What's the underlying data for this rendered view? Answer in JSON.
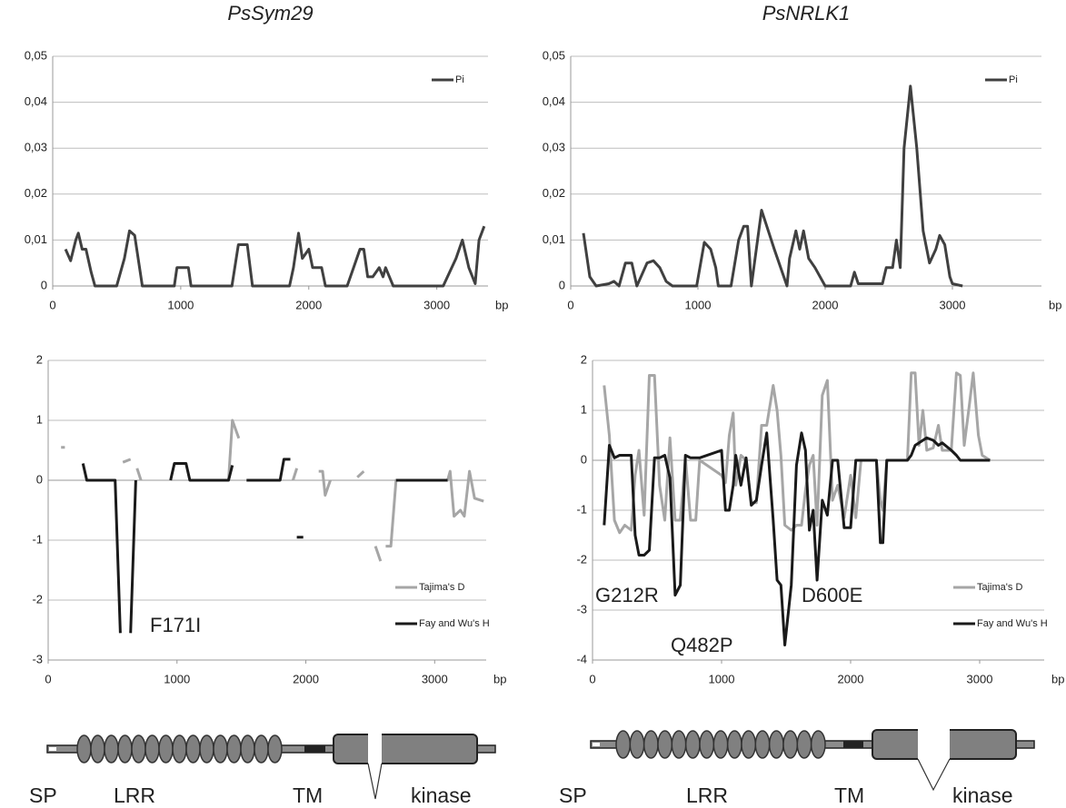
{
  "chart_data": [
    {
      "type": "line",
      "title": "PsSym29",
      "x_label": "bp",
      "legend": "upper right",
      "grid": true,
      "xlim": [
        0,
        3400
      ],
      "xticks": [
        0,
        1000,
        2000,
        3000
      ],
      "ylim": [
        0,
        0.05
      ],
      "yticks": [
        0,
        {
          "value": 0.01,
          "label": "0,01"
        },
        {
          "value": 0.02,
          "label": "0,02"
        },
        {
          "value": 0.03,
          "label": "0,03"
        },
        {
          "value": 0.04,
          "label": "0,04"
        },
        {
          "value": 0.05,
          "label": "0,05"
        }
      ],
      "x": [
        100,
        140,
        180,
        200,
        230,
        260,
        300,
        330,
        500,
        560,
        600,
        640,
        700,
        950,
        970,
        1060,
        1080,
        1400,
        1450,
        1520,
        1560,
        1850,
        1880,
        1920,
        1950,
        2000,
        2030,
        2100,
        2130,
        2300,
        2350,
        2400,
        2430,
        2460,
        2500,
        2550,
        2580,
        2600,
        2630,
        2660,
        3050,
        3150,
        3200,
        3250,
        3300,
        3330,
        3370
      ],
      "series": [
        {
          "name": "Pi",
          "color": "#404040",
          "values": [
            0.008,
            0.0055,
            0.01,
            0.0115,
            0.008,
            0.008,
            0.003,
            0,
            0,
            0.006,
            0.012,
            0.011,
            0,
            0,
            0.004,
            0.004,
            0,
            0,
            0.009,
            0.009,
            0,
            0,
            0.004,
            0.0115,
            0.006,
            0.008,
            0.004,
            0.004,
            0,
            0,
            0.004,
            0.008,
            0.008,
            0.002,
            0.002,
            0.004,
            0.002,
            0.004,
            0.002,
            0,
            0,
            0.006,
            0.01,
            0.004,
            0.0005,
            0.01,
            0.013
          ]
        }
      ]
    },
    {
      "type": "line",
      "title": "PsNRLK1",
      "x_label": "bp",
      "legend": "upper right",
      "grid": true,
      "xlim": [
        0,
        3700
      ],
      "xticks": [
        0,
        1000,
        2000,
        3000
      ],
      "ylim": [
        0,
        0.05
      ],
      "yticks": [
        0,
        {
          "value": 0.01,
          "label": "0,01"
        },
        {
          "value": 0.02,
          "label": "0,02"
        },
        {
          "value": 0.03,
          "label": "0,03"
        },
        {
          "value": 0.04,
          "label": "0,04"
        },
        {
          "value": 0.05,
          "label": "0,05"
        }
      ],
      "x": [
        100,
        150,
        200,
        300,
        340,
        380,
        430,
        480,
        520,
        600,
        650,
        700,
        750,
        800,
        850,
        990,
        1050,
        1100,
        1140,
        1160,
        1260,
        1320,
        1360,
        1390,
        1420,
        1500,
        1600,
        1700,
        1720,
        1770,
        1800,
        1830,
        1870,
        1920,
        2000,
        2200,
        2230,
        2260,
        2450,
        2480,
        2530,
        2560,
        2590,
        2620,
        2670,
        2720,
        2770,
        2820,
        2870,
        2900,
        2940,
        2980,
        3000,
        3080
      ],
      "series": [
        {
          "name": "Pi",
          "color": "#404040",
          "values": [
            0.0115,
            0.002,
            0,
            0.0005,
            0.001,
            0,
            0.005,
            0.005,
            0,
            0.005,
            0.0055,
            0.004,
            0.001,
            0,
            0,
            0,
            0.0095,
            0.008,
            0.004,
            0,
            0,
            0.01,
            0.013,
            0.013,
            0,
            0.0165,
            0.008,
            0,
            0.006,
            0.012,
            0.008,
            0.012,
            0.006,
            0.004,
            0,
            0,
            0.003,
            0.0005,
            0.0005,
            0.004,
            0.004,
            0.01,
            0.004,
            0.03,
            0.0435,
            0.03,
            0.012,
            0.005,
            0.008,
            0.011,
            0.009,
            0.002,
            0.0005,
            0
          ]
        }
      ]
    },
    {
      "type": "line",
      "x_label": "bp",
      "legend": "lower right",
      "grid": true,
      "xlim": [
        0,
        3400
      ],
      "xticks": [
        0,
        1000,
        2000,
        3000
      ],
      "ylim": [
        -3,
        2
      ],
      "yticks": [
        -3,
        -2,
        -1,
        0,
        1,
        2
      ],
      "annotations": [
        "F171I"
      ],
      "x": [
        100,
        130,
        160,
        170,
        200,
        220,
        230,
        260,
        270,
        300,
        520,
        560,
        580,
        640,
        680,
        690,
        720,
        950,
        980,
        1070,
        1100,
        1400,
        1430,
        1480,
        1500,
        1520,
        1540,
        1800,
        1830,
        1880,
        1900,
        1930,
        1980,
        1990,
        2020,
        2100,
        2130,
        2150,
        2190,
        2250,
        2260,
        2280,
        2300,
        2360,
        2370,
        2390,
        2400,
        2450,
        2490,
        2500,
        2520,
        2540,
        2580,
        2600,
        2620,
        2660,
        2700,
        3100,
        3120,
        3150,
        3200,
        3230,
        3270,
        3310,
        3380
      ],
      "series": [
        {
          "name": "Tajima's D",
          "color": "#a6a6a6",
          "values": [
            0.55,
            0.55,
            null,
            1.05,
            null,
            0.7,
            null,
            0.6,
            null,
            0,
            null,
            null,
            0.3,
            0.35,
            null,
            0.2,
            0,
            null,
            null,
            null,
            null,
            0,
            1.0,
            0.7,
            null,
            0,
            null,
            null,
            null,
            null,
            0,
            0.2,
            null,
            0.15,
            null,
            0.15,
            0.15,
            -0.25,
            0,
            null,
            0,
            null,
            0.15,
            null,
            0.15,
            null,
            0.05,
            0.15,
            null,
            0.05,
            null,
            -1.1,
            -1.35,
            null,
            -1.1,
            -1.1,
            0,
            0,
            0.15,
            -0.6,
            -0.5,
            -0.6,
            0.15,
            -0.3,
            -0.35
          ]
        },
        {
          "name": "Fay and Wu's H",
          "color": "#1a1a1a",
          "values": [
            -0.8,
            null,
            -0.75,
            null,
            -0.6,
            null,
            0.28,
            null,
            0.28,
            0,
            0,
            -2.55,
            null,
            -2.55,
            0,
            null,
            null,
            0,
            0.28,
            0.28,
            0,
            0,
            0.25,
            null,
            0.25,
            null,
            0,
            0,
            0.35,
            0.35,
            null,
            -0.95,
            -0.95,
            null,
            0,
            null,
            null,
            null,
            null,
            0,
            null,
            -0.95,
            null,
            -0.95,
            null,
            0,
            null,
            null,
            0,
            null,
            0.2,
            null,
            null,
            0.2,
            null,
            null,
            0,
            0,
            null,
            null,
            null,
            null,
            null,
            null,
            null
          ]
        }
      ]
    },
    {
      "type": "line",
      "x_label": "bp",
      "legend": "lower right",
      "grid": true,
      "xlim": [
        0,
        3500
      ],
      "xticks": [
        0,
        1000,
        2000,
        3000
      ],
      "ylim": [
        -4,
        2
      ],
      "yticks": [
        -4,
        -3,
        -2,
        -1,
        0,
        1,
        2
      ],
      "annotations": [
        "G212R",
        "Q482P",
        "D600E"
      ],
      "x": [
        90,
        130,
        170,
        210,
        250,
        300,
        330,
        360,
        400,
        440,
        480,
        520,
        560,
        600,
        640,
        680,
        720,
        760,
        800,
        830,
        1000,
        1030,
        1060,
        1090,
        1110,
        1150,
        1190,
        1230,
        1270,
        1310,
        1350,
        1400,
        1430,
        1460,
        1490,
        1540,
        1580,
        1620,
        1650,
        1680,
        1710,
        1740,
        1780,
        1820,
        1860,
        1900,
        1950,
        2000,
        2040,
        2080,
        2200,
        2230,
        2250,
        2280,
        2440,
        2470,
        2500,
        2530,
        2560,
        2590,
        2640,
        2680,
        2710,
        2780,
        2820,
        2850,
        2880,
        2920,
        2950,
        2990,
        3020,
        3080
      ],
      "series": [
        {
          "name": "Tajima's D",
          "color": "#a6a6a6",
          "values": [
            1.5,
            0.5,
            -1.2,
            -1.45,
            -1.3,
            -1.4,
            -0.3,
            0.2,
            -1.1,
            1.7,
            1.7,
            -0.5,
            -1.2,
            0.45,
            -1.2,
            -1.2,
            0.05,
            -1.2,
            -1.2,
            0,
            -0.3,
            -0.45,
            0.5,
            0.95,
            -0.5,
            0.1,
            0,
            -0.85,
            -0.85,
            0.7,
            0.7,
            1.5,
            1.0,
            0.1,
            -1.3,
            -1.4,
            -1.3,
            -1.3,
            -0.6,
            -0.1,
            0.1,
            -1.3,
            1.3,
            1.6,
            -0.8,
            -0.5,
            -1.15,
            -0.3,
            -1.15,
            0,
            0,
            -0.8,
            -1.0,
            0,
            0,
            1.75,
            1.75,
            0.3,
            1.0,
            0.2,
            0.25,
            0.7,
            0.2,
            0.2,
            1.75,
            1.7,
            0.3,
            1.1,
            1.75,
            0.5,
            0.1,
            0
          ]
        },
        {
          "name": "Fay and Wu's H",
          "color": "#1a1a1a",
          "values": [
            -1.3,
            0.3,
            0.05,
            0.1,
            0.1,
            0.1,
            -1.5,
            -1.9,
            -1.9,
            -1.8,
            0.05,
            0.05,
            0.1,
            -0.35,
            -2.7,
            -2.5,
            0.1,
            0.05,
            0.05,
            0.05,
            0.2,
            -1.0,
            -1.0,
            -0.5,
            0.1,
            -0.5,
            0.05,
            -0.9,
            -0.8,
            -0.1,
            0.55,
            -1.2,
            -2.4,
            -2.5,
            -3.7,
            -2.5,
            -0.1,
            0.55,
            0.2,
            -1.4,
            -1.0,
            -2.4,
            -0.8,
            -1.1,
            0,
            0,
            -1.35,
            -1.35,
            0,
            0,
            0,
            -1.65,
            -1.65,
            0,
            0,
            0.1,
            0.3,
            0.35,
            0.4,
            0.45,
            0.4,
            0.3,
            0.35,
            0.2,
            0.1,
            0,
            0,
            0,
            0,
            0,
            0,
            0
          ]
        }
      ]
    }
  ],
  "protein_diagrams": [
    {
      "labels": [
        "SP",
        "LRR",
        "TM",
        "kinase"
      ]
    },
    {
      "labels": [
        "SP",
        "LRR",
        "TM",
        "kinase"
      ]
    }
  ]
}
